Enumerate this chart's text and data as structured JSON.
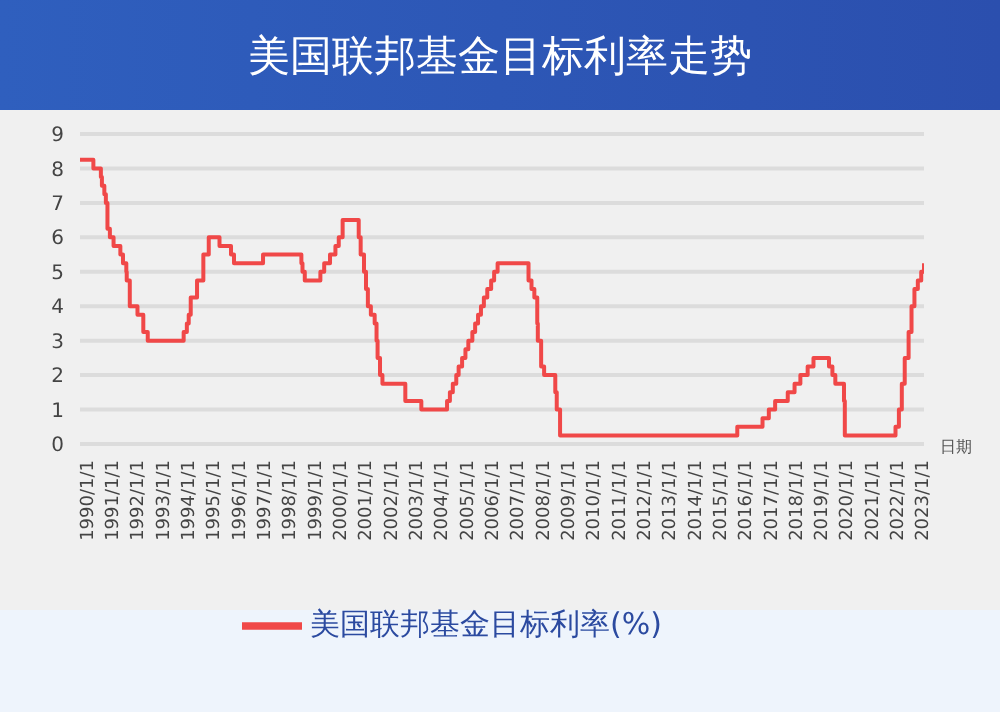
{
  "chart_data": {
    "type": "step",
    "title": "美国联邦基金目标利率走势",
    "xlabel": "日期",
    "x": [
      "1990-01-01",
      "1990-07-13",
      "1990-10-29",
      "1990-11-13",
      "1990-12-18",
      "1991-01-09",
      "1991-02-01",
      "1991-03-08",
      "1991-04-30",
      "1991-08-06",
      "1991-09-13",
      "1991-10-31",
      "1991-11-06",
      "1991-12-20",
      "1992-04-09",
      "1992-07-02",
      "1992-09-04",
      "1994-02-04",
      "1994-03-22",
      "1994-04-18",
      "1994-05-17",
      "1994-08-16",
      "1994-11-15",
      "1995-02-01",
      "1995-07-06",
      "1995-12-19",
      "1996-01-31",
      "1997-03-25",
      "1998-09-29",
      "1998-10-15",
      "1998-11-17",
      "1999-06-30",
      "1999-08-24",
      "1999-11-16",
      "2000-02-02",
      "2000-03-21",
      "2000-05-16",
      "2001-01-03",
      "2001-01-31",
      "2001-03-20",
      "2001-04-18",
      "2001-05-15",
      "2001-06-27",
      "2001-08-21",
      "2001-09-17",
      "2001-10-02",
      "2001-11-06",
      "2001-12-11",
      "2002-11-06",
      "2003-06-25",
      "2004-06-30",
      "2004-08-10",
      "2004-09-21",
      "2004-11-10",
      "2004-12-14",
      "2005-02-02",
      "2005-03-22",
      "2005-05-03",
      "2005-06-30",
      "2005-08-09",
      "2005-09-20",
      "2005-11-01",
      "2005-12-13",
      "2006-01-31",
      "2006-03-28",
      "2006-05-10",
      "2006-06-29",
      "2007-09-18",
      "2007-10-31",
      "2007-12-11",
      "2008-01-22",
      "2008-01-30",
      "2008-03-18",
      "2008-04-30",
      "2008-10-08",
      "2008-10-29",
      "2008-12-16",
      "2015-12-16",
      "2016-12-14",
      "2017-03-15",
      "2017-06-14",
      "2017-12-13",
      "2018-03-21",
      "2018-06-13",
      "2018-09-26",
      "2018-12-19",
      "2019-07-31",
      "2019-09-18",
      "2019-10-30",
      "2020-03-03",
      "2020-03-15",
      "2022-03-16",
      "2022-05-04",
      "2022-06-15",
      "2022-07-27",
      "2022-09-21",
      "2022-11-02",
      "2022-12-14",
      "2023-02-01",
      "2023-03-22",
      "2023-05-01"
    ],
    "series": [
      {
        "name": "美国联邦基金目标利率(%)",
        "color": "#f04848",
        "values": [
          8.25,
          8,
          7.75,
          7.5,
          7.25,
          7,
          6.25,
          6,
          5.75,
          5.5,
          5.25,
          5,
          4.75,
          4,
          3.75,
          3.25,
          3,
          3.25,
          3.5,
          3.75,
          4.25,
          4.75,
          5.5,
          6,
          5.75,
          5.5,
          5.25,
          5.5,
          5.25,
          5,
          4.75,
          5,
          5.25,
          5.5,
          5.75,
          6,
          6.5,
          6,
          5.5,
          5,
          4.5,
          4,
          3.75,
          3.5,
          3,
          2.5,
          2,
          1.75,
          1.25,
          1,
          1.25,
          1.5,
          1.75,
          2,
          2.25,
          2.5,
          2.75,
          3,
          3.25,
          3.5,
          3.75,
          4,
          4.25,
          4.5,
          4.75,
          5,
          5.25,
          4.75,
          4.5,
          4.25,
          3.5,
          3,
          2.25,
          2,
          1.5,
          1,
          0.25,
          0.5,
          0.75,
          1,
          1.25,
          1.5,
          1.75,
          2,
          2.25,
          2.5,
          2.25,
          2,
          1.75,
          1.25,
          0.25,
          0.5,
          1,
          1.75,
          2.5,
          3.25,
          4,
          4.5,
          4.75,
          5,
          5.25
        ]
      }
    ],
    "xlim": [
      "1990-01-01",
      "2023-05-01"
    ],
    "xticks": [
      {
        "value": "1990-01-01",
        "label": "1990/1/1"
      },
      {
        "value": "1991-01-01",
        "label": "1991/1/1"
      },
      {
        "value": "1992-01-01",
        "label": "1992/1/1"
      },
      {
        "value": "1993-01-01",
        "label": "1993/1/1"
      },
      {
        "value": "1994-01-01",
        "label": "1994/1/1"
      },
      {
        "value": "1995-01-01",
        "label": "1995/1/1"
      },
      {
        "value": "1996-01-01",
        "label": "1996/1/1"
      },
      {
        "value": "1997-01-01",
        "label": "1997/1/1"
      },
      {
        "value": "1998-01-01",
        "label": "1998/1/1"
      },
      {
        "value": "1999-01-01",
        "label": "1999/1/1"
      },
      {
        "value": "2000-01-01",
        "label": "2000/1/1"
      },
      {
        "value": "2001-01-01",
        "label": "2001/1/1"
      },
      {
        "value": "2002-01-01",
        "label": "2002/1/1"
      },
      {
        "value": "2003-01-01",
        "label": "2003/1/1"
      },
      {
        "value": "2004-01-01",
        "label": "2004/1/1"
      },
      {
        "value": "2005-01-01",
        "label": "2005/1/1"
      },
      {
        "value": "2006-01-01",
        "label": "2006/1/1"
      },
      {
        "value": "2007-01-01",
        "label": "2007/1/1"
      },
      {
        "value": "2008-01-01",
        "label": "2008/1/1"
      },
      {
        "value": "2009-01-01",
        "label": "2009/1/1"
      },
      {
        "value": "2010-01-01",
        "label": "2010/1/1"
      },
      {
        "value": "2011-01-01",
        "label": "2011/1/1"
      },
      {
        "value": "2012-01-01",
        "label": "2012/1/1"
      },
      {
        "value": "2013-01-01",
        "label": "2013/1/1"
      },
      {
        "value": "2014-01-01",
        "label": "2014/1/1"
      },
      {
        "value": "2015-01-01",
        "label": "2015/1/1"
      },
      {
        "value": "2016-01-01",
        "label": "2016/1/1"
      },
      {
        "value": "2017-01-01",
        "label": "2017/1/1"
      },
      {
        "value": "2018-01-01",
        "label": "2018/1/1"
      },
      {
        "value": "2019-01-01",
        "label": "2019/1/1"
      },
      {
        "value": "2020-01-01",
        "label": "2020/1/1"
      },
      {
        "value": "2021-01-01",
        "label": "2021/1/1"
      },
      {
        "value": "2022-01-01",
        "label": "2022/1/1"
      },
      {
        "value": "2023-01-01",
        "label": "2023/1/1"
      }
    ],
    "ylim": [
      0,
      9
    ],
    "yticks": [
      0,
      1,
      2,
      3,
      4,
      5,
      6,
      7,
      8,
      9
    ],
    "grid": "y",
    "legend": "bottom",
    "marker": "none",
    "line_style": "solid"
  }
}
